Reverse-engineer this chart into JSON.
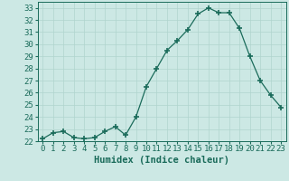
{
  "x": [
    0,
    1,
    2,
    3,
    4,
    5,
    6,
    7,
    8,
    9,
    10,
    11,
    12,
    13,
    14,
    15,
    16,
    17,
    18,
    19,
    20,
    21,
    22,
    23
  ],
  "y": [
    22.2,
    22.7,
    22.8,
    22.3,
    22.2,
    22.3,
    22.8,
    23.2,
    22.5,
    24.0,
    26.5,
    28.0,
    29.5,
    30.3,
    31.2,
    32.5,
    33.0,
    32.6,
    32.6,
    31.3,
    29.0,
    27.0,
    25.8,
    24.8
  ],
  "line_color": "#1a6b5a",
  "marker": "+",
  "marker_size": 4,
  "bg_color": "#cce8e4",
  "grid_color": "#b0d4ce",
  "xlabel": "Humidex (Indice chaleur)",
  "xlim": [
    -0.5,
    23.5
  ],
  "ylim": [
    22,
    33.5
  ],
  "yticks": [
    22,
    23,
    24,
    25,
    26,
    27,
    28,
    29,
    30,
    31,
    32,
    33
  ],
  "xticks": [
    0,
    1,
    2,
    3,
    4,
    5,
    6,
    7,
    8,
    9,
    10,
    11,
    12,
    13,
    14,
    15,
    16,
    17,
    18,
    19,
    20,
    21,
    22,
    23
  ],
  "tick_label_fontsize": 6.5,
  "xlabel_fontsize": 7.5
}
